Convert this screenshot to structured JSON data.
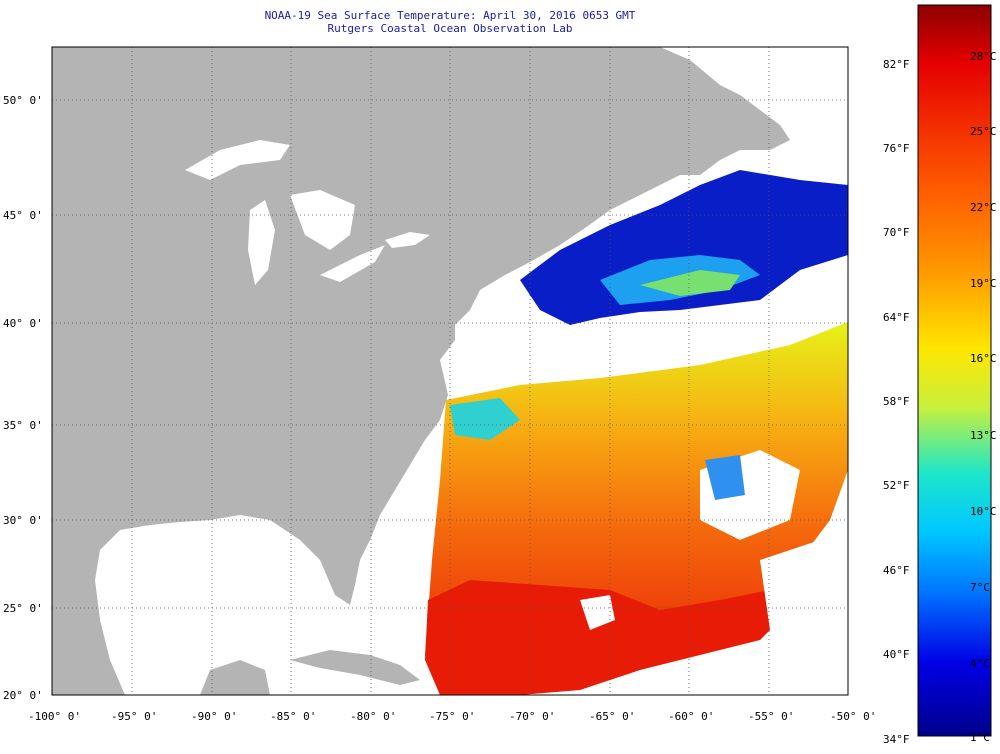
{
  "title": {
    "line1": "NOAA-19 Sea Surface Temperature:  April 30, 2016 0653 GMT",
    "line2": "Rutgers Coastal Ocean Observation Lab"
  },
  "map": {
    "lat_labels": [
      "50° 0'",
      "45° 0'",
      "40° 0'",
      "35° 0'",
      "30° 0'",
      "25° 0'",
      "20° 0'"
    ],
    "lon_labels": [
      "-100° 0'",
      "-95° 0'",
      "-90° 0'",
      "-85° 0'",
      "-80° 0'",
      "-75° 0'",
      "-70° 0'",
      "-65° 0'",
      "-60° 0'",
      "-55° 0'",
      "-50° 0'"
    ],
    "lat_range": [
      20,
      52.5
    ],
    "lon_range": [
      -100,
      -50
    ],
    "colors": {
      "land": "#b4b4b4",
      "cloud": "#ffffff",
      "grid": "#444444"
    }
  },
  "scale": {
    "fahrenheit": [
      "82°F",
      "76°F",
      "70°F",
      "64°F",
      "58°F",
      "52°F",
      "46°F",
      "40°F",
      "34°F"
    ],
    "celsius": [
      "28°C",
      "25°C",
      "22°C",
      "19°C",
      "16°C",
      "13°C",
      "10°C",
      "7°C",
      "4°C",
      "1°C"
    ],
    "range_c": [
      0,
      30
    ]
  }
}
